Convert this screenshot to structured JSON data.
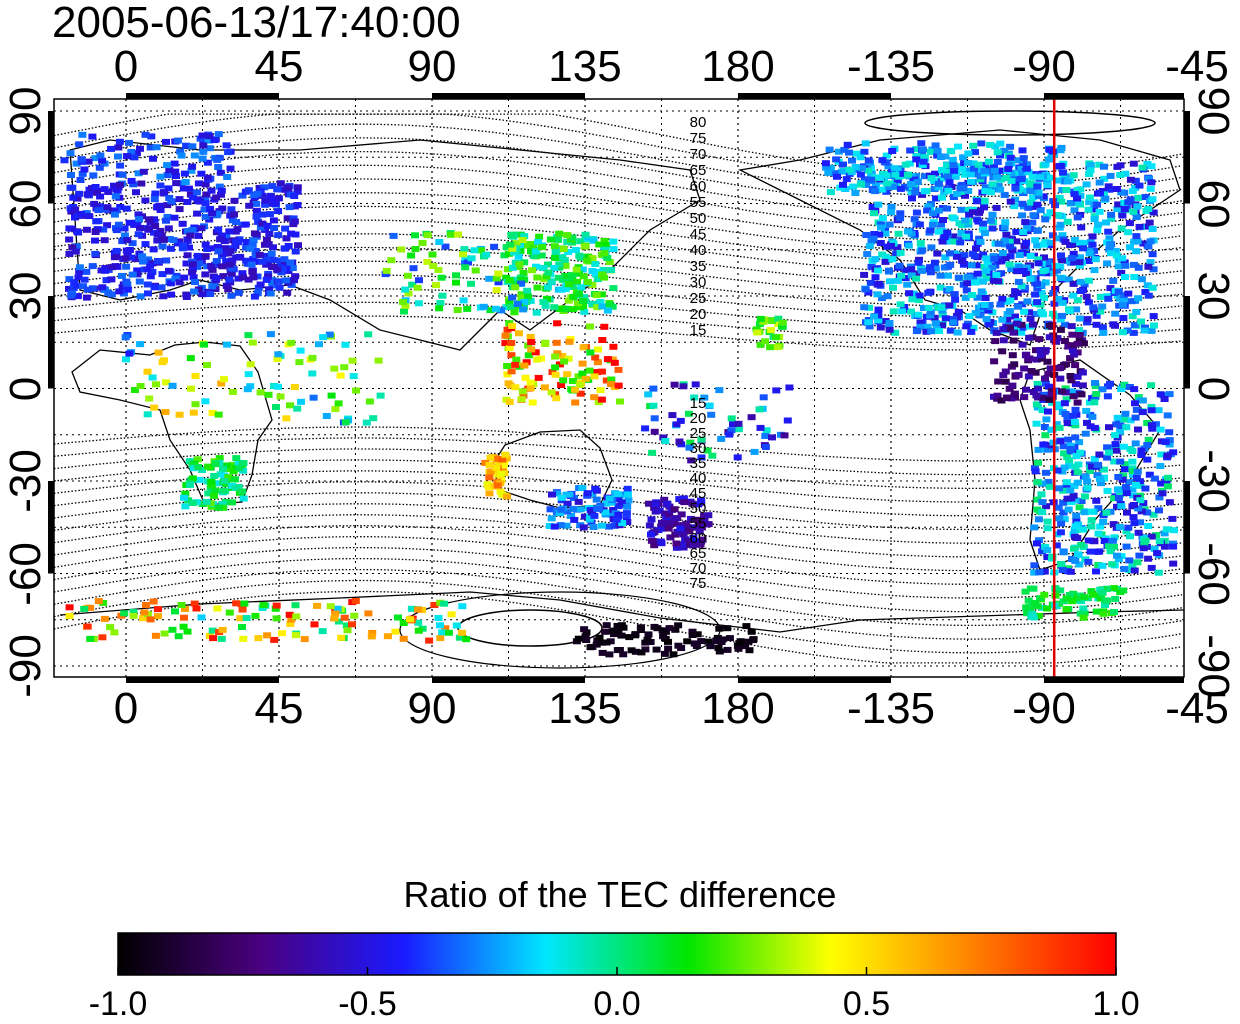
{
  "timestamp": "2005-06-13/17:40:00",
  "longitude_ticks": [
    "0",
    "45",
    "90",
    "135",
    "180",
    "-135",
    "-90",
    "-45"
  ],
  "latitude_ticks": [
    "90",
    "60",
    "30",
    "0",
    "-30",
    "-60",
    "-90"
  ],
  "contour_labels_north": [
    "80",
    "75",
    "70",
    "65",
    "60",
    "55",
    "50",
    "45",
    "40",
    "35",
    "30",
    "25",
    "20",
    "15"
  ],
  "contour_labels_south": [
    "15",
    "20",
    "25",
    "30",
    "35",
    "40",
    "45",
    "50",
    "55",
    "60",
    "65",
    "70",
    "75"
  ],
  "meridian_marker_longitude": -87,
  "colorbar": {
    "title": "Ratio of the TEC difference",
    "tick_labels": [
      "-1.0",
      "-0.5",
      "0.0",
      "0.5",
      "1.0"
    ],
    "range": [
      -1.0,
      1.0
    ],
    "colormap": [
      "#000000",
      "#4a0080",
      "#1a1aff",
      "#00e6ff",
      "#00e600",
      "#ffff00",
      "#ff8000",
      "#ff0000"
    ]
  },
  "colors": {
    "meridian_marker": "#e00000",
    "coastline": "#000000"
  }
}
